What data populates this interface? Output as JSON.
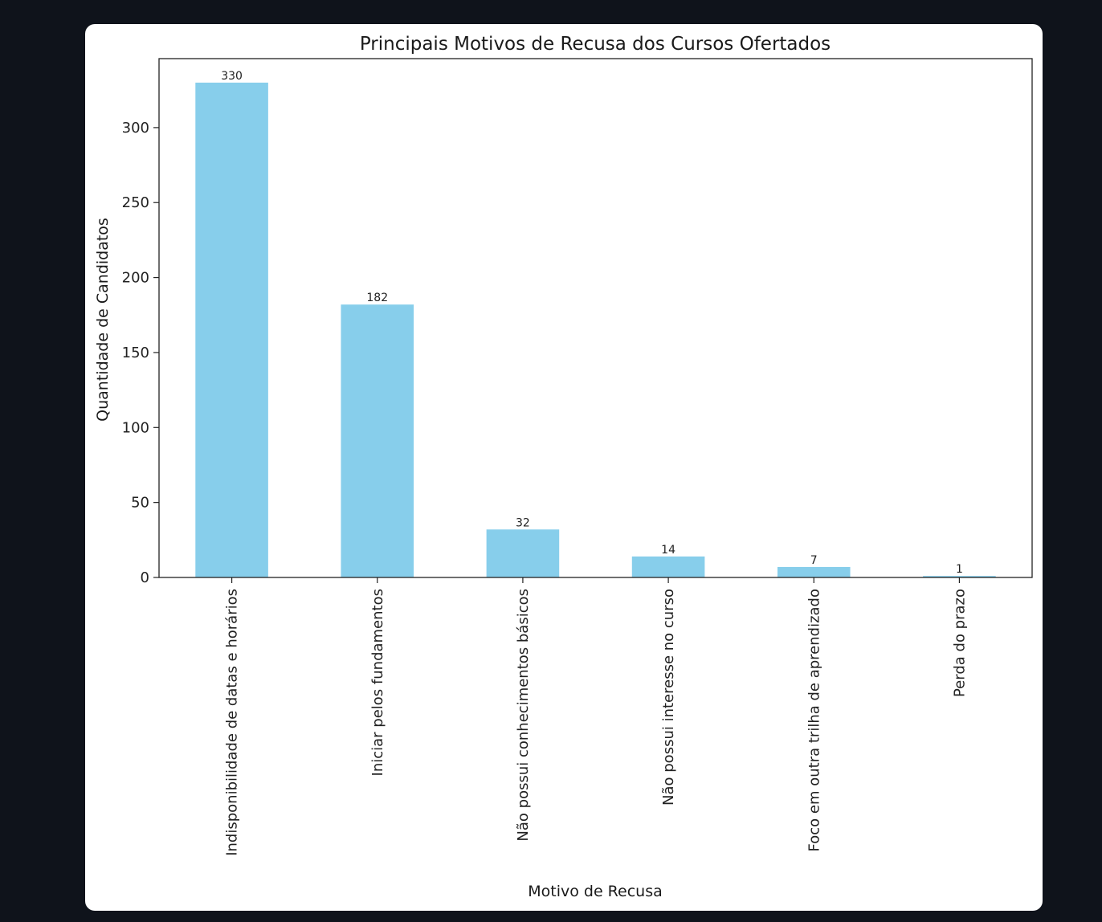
{
  "chart_data": {
    "type": "bar",
    "title": "Principais Motivos de Recusa dos Cursos Ofertados",
    "xlabel": "Motivo de Recusa",
    "ylabel": "Quantidade de Candidatos",
    "categories": [
      "Indisponibilidade de datas e horários",
      "Iniciar pelos fundamentos",
      "Não possui conhecimentos básicos",
      "Não possui interesse no curso",
      "Foco em outra trilha de aprendizado",
      "Perda do prazo"
    ],
    "values": [
      330,
      182,
      32,
      14,
      7,
      1
    ],
    "ylim": [
      0,
      346
    ],
    "yticks": [
      0,
      50,
      100,
      150,
      200,
      250,
      300
    ],
    "grid": false,
    "legend": "none",
    "bar_color": "#87ceeb",
    "data_labels": true
  }
}
